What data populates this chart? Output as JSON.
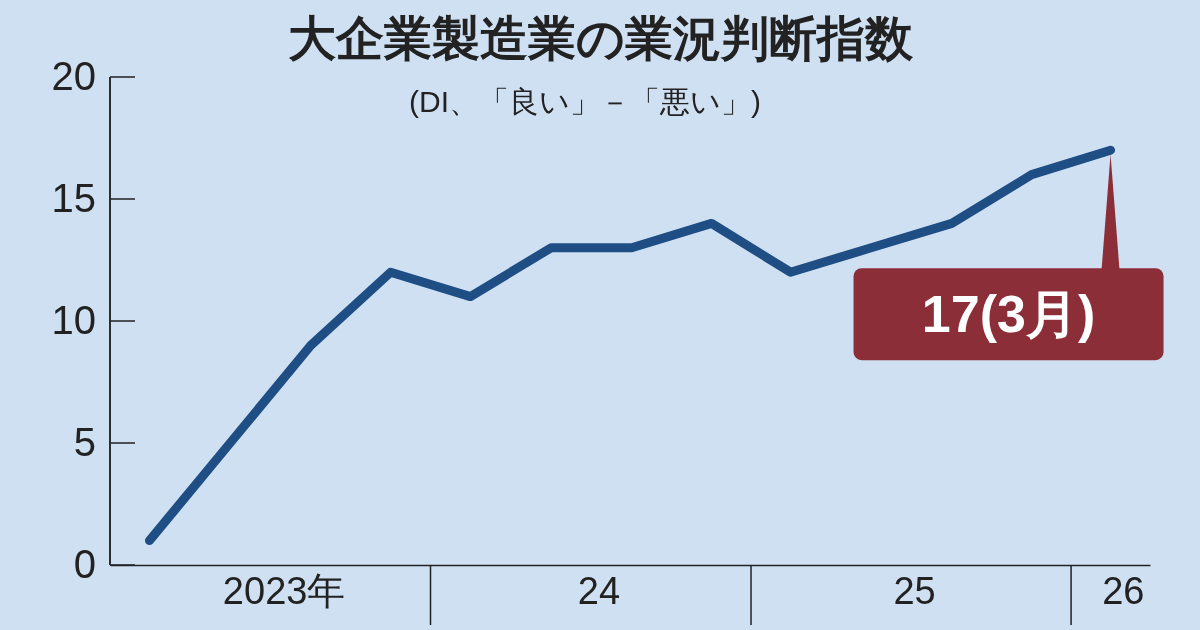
{
  "chart_data": {
    "type": "line",
    "title": "大企業製造業の業況判断指数",
    "subtitle": "(DI、「良い」－「悪い」)",
    "x": [
      "2023-03",
      "2023-06",
      "2023-09",
      "2023-12",
      "2024-03",
      "2024-06",
      "2024-09",
      "2024-12",
      "2025-03",
      "2025-06",
      "2025-09",
      "2025-12",
      "2026-03"
    ],
    "series": [
      {
        "color": "#1f4e84",
        "values": [
          1,
          5,
          9,
          12,
          11,
          13,
          13,
          14,
          12,
          13,
          14,
          16,
          17
        ]
      }
    ],
    "xlim": [
      "2023-01-15",
      "2026-04-15"
    ],
    "xticks": [
      {
        "value": "2023-08-01",
        "label": "2023年"
      },
      {
        "value": "2024-07-25",
        "label": "24"
      },
      {
        "value": "2025-07-20",
        "label": "25"
      },
      {
        "value": "2026-03-15",
        "label": "26"
      }
    ],
    "ylim": [
      0,
      20
    ],
    "yticks": [
      0,
      5,
      10,
      15,
      20
    ],
    "marker": "none",
    "line_style": "solid",
    "grid": false,
    "annotations": [
      {
        "text": "17(3月)",
        "x": "2026-03",
        "y": 17
      }
    ]
  }
}
